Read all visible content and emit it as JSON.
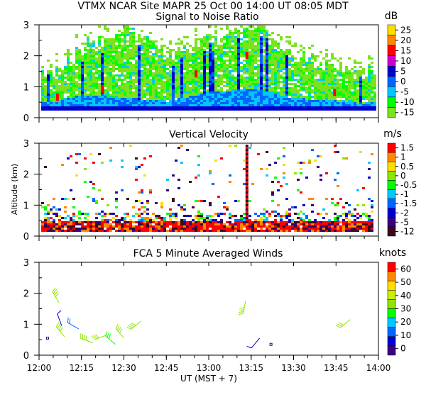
{
  "header": "VTMX  NCAR Site  MAPR 25 Oct 00  14:00 UT  08:05  MDT",
  "x_axis": {
    "label": "UT  (MST + 7)",
    "range": [
      "12:00",
      "14:00"
    ],
    "ticks": [
      "12:00",
      "12:15",
      "12:30",
      "12:45",
      "13:00",
      "13:15",
      "13:30",
      "13:45",
      "14:00"
    ]
  },
  "y_axis_label": "Altitude (km)",
  "colors": {
    "snr_palette": [
      "#7be21e",
      "#00ff00",
      "#00c8ff",
      "#0066ff",
      "#0000cc",
      "#3a0080",
      "#cc00cc",
      "#ff0000",
      "#ff8800",
      "#ffdd00"
    ],
    "vel_palette": [
      "#3a0a1e",
      "#3a0080",
      "#0000cc",
      "#0066ff",
      "#00c8ff",
      "#00ff00",
      "#8ce600",
      "#ffdd00",
      "#ff8800",
      "#ff0000"
    ],
    "wind_palette": [
      "#3a0080",
      "#0000cc",
      "#0066ff",
      "#00c8ff",
      "#00ff00",
      "#8ce600",
      "#ccee00",
      "#ffdd00",
      "#ff8800",
      "#ff0000"
    ]
  },
  "chart_data": [
    {
      "type": "heatmap",
      "title": "Signal to Noise Ratio",
      "units": "dB",
      "ylim": [
        0,
        3
      ],
      "yticks": [
        "0",
        "1",
        "2",
        "3"
      ],
      "colorbar": [
        "25",
        "20",
        "15",
        "10",
        "5",
        "0",
        "-5",
        "-10",
        "-15"
      ],
      "profiles_km": [
        {
          "t": "12:05",
          "top": 1.4,
          "core": 0.5
        },
        {
          "t": "12:15",
          "top": 2.2,
          "core": 0.7
        },
        {
          "t": "12:30",
          "top": 2.8,
          "core": 0.6
        },
        {
          "t": "12:45",
          "top": 2.0,
          "core": 0.5
        },
        {
          "t": "13:00",
          "top": 2.4,
          "core": 0.8
        },
        {
          "t": "13:15",
          "top": 2.9,
          "core": 0.9
        },
        {
          "t": "13:30",
          "top": 2.0,
          "core": 0.6
        },
        {
          "t": "13:45",
          "top": 1.6,
          "core": 0.5
        },
        {
          "t": "13:55",
          "top": 1.2,
          "core": 0.4
        }
      ]
    },
    {
      "type": "heatmap",
      "title": "Vertical Velocity",
      "units": "m/s",
      "ylim": [
        0,
        3
      ],
      "yticks": [
        "0",
        "1",
        "2",
        "3"
      ],
      "colorbar": [
        "1.5",
        "1",
        "0.5",
        "0",
        "-0.5",
        "-1",
        "-1.5",
        "-2",
        "-5",
        "-12"
      ],
      "notes": "Strong downward velocities concentrated below 0.6 km; scattered values up to 3 km, with a column near 13:13 UT."
    },
    {
      "type": "scatter",
      "title": "FCA 5 Minute Averaged Winds",
      "units": "knots",
      "ylim": [
        0,
        3
      ],
      "yticks": [
        "0",
        "1",
        "2",
        "3"
      ],
      "colorbar": [
        "60",
        "50",
        "40",
        "30",
        "20",
        "10",
        "0"
      ],
      "barbs": [
        {
          "t": "12:03",
          "alt": 0.55,
          "speed": 5,
          "dir": 0
        },
        {
          "t": "12:07",
          "alt": 1.7,
          "speed": 38,
          "dir": 330
        },
        {
          "t": "12:08",
          "alt": 0.95,
          "speed": 8,
          "dir": 340
        },
        {
          "t": "12:09",
          "alt": 0.6,
          "speed": 35,
          "dir": 320
        },
        {
          "t": "12:14",
          "alt": 0.85,
          "speed": 18,
          "dir": 300
        },
        {
          "t": "12:19",
          "alt": 0.4,
          "speed": 36,
          "dir": 290
        },
        {
          "t": "12:24",
          "alt": 0.65,
          "speed": 34,
          "dir": 250
        },
        {
          "t": "12:27",
          "alt": 0.35,
          "speed": 30,
          "dir": 310
        },
        {
          "t": "12:30",
          "alt": 0.55,
          "speed": 38,
          "dir": 320
        },
        {
          "t": "12:36",
          "alt": 1.1,
          "speed": 36,
          "dir": 230
        },
        {
          "t": "13:13",
          "alt": 1.75,
          "speed": 38,
          "dir": 190
        },
        {
          "t": "13:18",
          "alt": 0.55,
          "speed": 12,
          "dir": 220
        },
        {
          "t": "13:22",
          "alt": 0.35,
          "speed": 2,
          "dir": 0
        },
        {
          "t": "13:50",
          "alt": 1.15,
          "speed": 34,
          "dir": 230
        }
      ]
    }
  ]
}
